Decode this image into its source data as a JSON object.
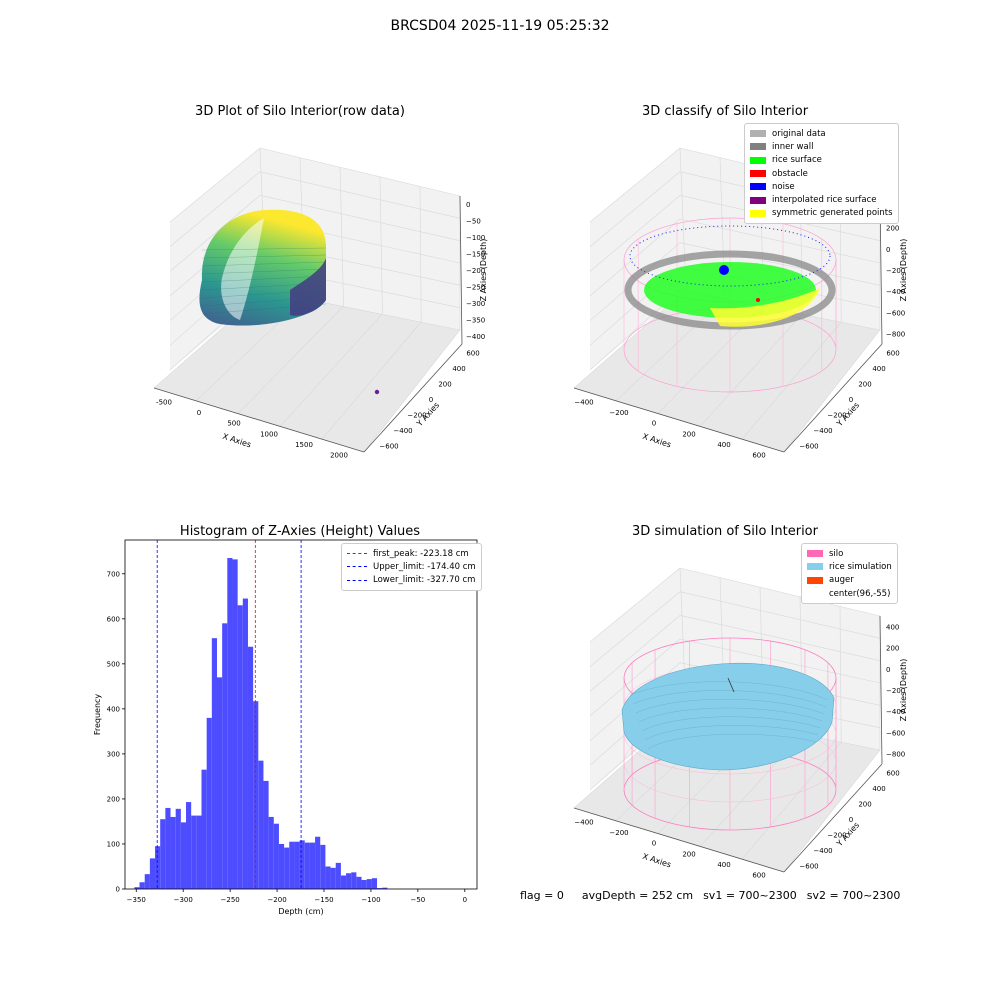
{
  "suptitle": "BRCSD04 2025-11-19 05:25:32",
  "panels": {
    "raw": {
      "title": "3D Plot of Silo Interior(row data)",
      "xlabel": "X Axies",
      "ylabel": "Y Axies",
      "zlabel": "Z Axies (Depth)",
      "xticks": [
        "-500",
        "0",
        "500",
        "1000",
        "1500",
        "2000"
      ],
      "yticks": [
        "600",
        "400",
        "200",
        "0",
        "−200",
        "−400",
        "−600"
      ],
      "zticks": [
        "0",
        "−50",
        "−100",
        "−150",
        "−200",
        "−250",
        "−300",
        "−350",
        "−400"
      ]
    },
    "classify": {
      "title": "3D classify of Silo Interior",
      "xlabel": "X Axies",
      "ylabel": "Y Axies",
      "zlabel": "Z Axies (Depth)",
      "xticks": [
        "−400",
        "−200",
        "0",
        "200",
        "400",
        "600"
      ],
      "yticks": [
        "600",
        "400",
        "200",
        "0",
        "−200",
        "−400",
        "−600"
      ],
      "zticks": [
        "400",
        "200",
        "0",
        "−200",
        "−400",
        "−600",
        "−800"
      ],
      "legend": [
        {
          "label": "original data",
          "color": "#b0b0b0"
        },
        {
          "label": "inner wall",
          "color": "#808080"
        },
        {
          "label": "rice surface",
          "color": "#00ff00"
        },
        {
          "label": "obstacle",
          "color": "#ff0000"
        },
        {
          "label": "noise",
          "color": "#0000ff"
        },
        {
          "label": "interpolated rice surface",
          "color": "#800080"
        },
        {
          "label": "symmetric generated points",
          "color": "#ffff00"
        }
      ]
    },
    "simulation": {
      "title": "3D simulation of Silo Interior",
      "xlabel": "X Axies",
      "ylabel": "Y Axies",
      "zlabel": "Z Axies (Depth)",
      "xticks": [
        "−400",
        "−200",
        "0",
        "200",
        "400",
        "600"
      ],
      "yticks": [
        "600",
        "400",
        "200",
        "0",
        "−200",
        "−400",
        "−600"
      ],
      "zticks": [
        "400",
        "200",
        "0",
        "−200",
        "−400",
        "−600",
        "−800"
      ],
      "legend": [
        {
          "label": "silo",
          "color": "#ff69b4"
        },
        {
          "label": "rice simulation",
          "color": "#87ceeb"
        },
        {
          "label": "auger",
          "color": "#ff4500"
        },
        {
          "label": "center(96,-55)",
          "color": "#ffffff"
        }
      ]
    }
  },
  "status": {
    "flag": "flag = 0",
    "avg_depth": "avgDepth = 252 cm",
    "sv1": "sv1 = 700~2300",
    "sv2": "sv2 = 700~2300"
  },
  "chart_data": {
    "type": "bar",
    "title": "Histogram of Z-Axies (Height) Values",
    "xlabel": "Depth (cm)",
    "ylabel": "Frequency",
    "xlim": [
      -362,
      13
    ],
    "ylim": [
      0,
      775
    ],
    "xticks": [
      -350,
      -300,
      -250,
      -200,
      -150,
      -100,
      -50,
      0
    ],
    "yticks": [
      0,
      100,
      200,
      300,
      400,
      500,
      600,
      700
    ],
    "bin_width": 5.5,
    "bins": [
      {
        "x0": -352,
        "value": 4
      },
      {
        "x0": -346.5,
        "value": 15
      },
      {
        "x0": -341,
        "value": 33
      },
      {
        "x0": -335.5,
        "value": 68
      },
      {
        "x0": -330,
        "value": 95
      },
      {
        "x0": -324.5,
        "value": 155
      },
      {
        "x0": -319,
        "value": 180
      },
      {
        "x0": -313.5,
        "value": 160
      },
      {
        "x0": -308,
        "value": 178
      },
      {
        "x0": -302.5,
        "value": 148
      },
      {
        "x0": -297,
        "value": 193
      },
      {
        "x0": -291.5,
        "value": 163
      },
      {
        "x0": -286,
        "value": 163
      },
      {
        "x0": -280.5,
        "value": 265
      },
      {
        "x0": -275,
        "value": 380
      },
      {
        "x0": -269.5,
        "value": 557
      },
      {
        "x0": -264,
        "value": 470
      },
      {
        "x0": -258.5,
        "value": 590
      },
      {
        "x0": -253,
        "value": 735
      },
      {
        "x0": -247.5,
        "value": 732
      },
      {
        "x0": -242,
        "value": 630
      },
      {
        "x0": -236.5,
        "value": 645
      },
      {
        "x0": -231,
        "value": 538
      },
      {
        "x0": -225.5,
        "value": 417
      },
      {
        "x0": -220,
        "value": 285
      },
      {
        "x0": -214.5,
        "value": 240
      },
      {
        "x0": -209,
        "value": 160
      },
      {
        "x0": -203.5,
        "value": 145
      },
      {
        "x0": -198,
        "value": 100
      },
      {
        "x0": -192.5,
        "value": 92
      },
      {
        "x0": -187,
        "value": 105
      },
      {
        "x0": -181.5,
        "value": 105
      },
      {
        "x0": -176,
        "value": 108
      },
      {
        "x0": -170.5,
        "value": 103
      },
      {
        "x0": -165,
        "value": 103
      },
      {
        "x0": -159.5,
        "value": 116
      },
      {
        "x0": -154,
        "value": 98
      },
      {
        "x0": -148.5,
        "value": 50
      },
      {
        "x0": -143,
        "value": 47
      },
      {
        "x0": -137.5,
        "value": 58
      },
      {
        "x0": -132,
        "value": 30
      },
      {
        "x0": -126.5,
        "value": 35
      },
      {
        "x0": -121,
        "value": 37
      },
      {
        "x0": -115.5,
        "value": 27
      },
      {
        "x0": -110,
        "value": 20
      },
      {
        "x0": -104.5,
        "value": 22
      },
      {
        "x0": -99,
        "value": 24
      },
      {
        "x0": -93.5,
        "value": 2
      },
      {
        "x0": -88,
        "value": 3
      }
    ],
    "bar_color": "#4d4dff",
    "vlines": [
      {
        "label": "first_peak: -223.18 cm",
        "x": -223.18,
        "color": "#ff0000"
      },
      {
        "label": "Upper_limit: -174.40 cm",
        "x": -174.4,
        "color": "#0000ff"
      },
      {
        "label": "Lower_limit: -327.70 cm",
        "x": -327.7,
        "color": "#0000ff"
      }
    ],
    "legend_position": "upper right",
    "grid": false
  }
}
